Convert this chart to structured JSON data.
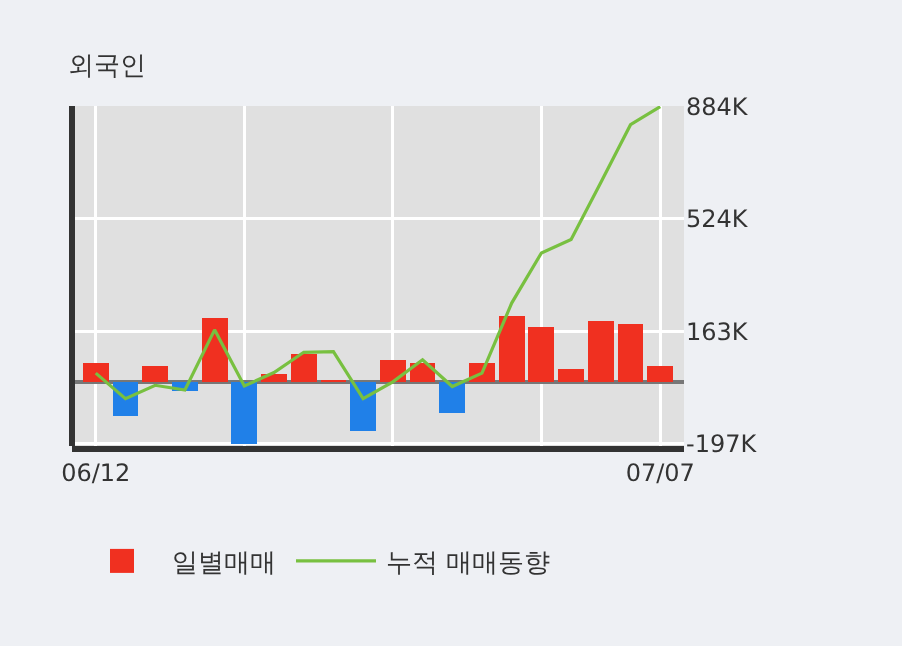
{
  "chart_data": {
    "type": "bar",
    "title": "외국인",
    "categories": [
      "06/12",
      null,
      null,
      null,
      null,
      null,
      null,
      null,
      null,
      null,
      null,
      null,
      null,
      null,
      null,
      null,
      null,
      null,
      null,
      "07/07"
    ],
    "series": [
      {
        "name": "일별매매",
        "colors": [
          "#f03020",
          "#2080e8",
          "#f03020",
          "#2080e8",
          "#f03020",
          "#2080e8",
          "#f03020",
          "#f03020",
          "#f03020",
          "#2080e8",
          "#f03020",
          "#f03020",
          "#2080e8",
          "#f03020",
          "#f03020",
          "#f03020",
          "#f03020",
          "#f03020",
          "#f03020",
          "#f03020"
        ],
        "values": [
          60000,
          -111000,
          50000,
          -28000,
          206000,
          -198000,
          26000,
          90000,
          6000,
          -159000,
          71000,
          60000,
          -101000,
          60000,
          211000,
          176000,
          41000,
          195000,
          187000,
          52000
        ]
      },
      {
        "name": "누적 매매동향",
        "type": "line",
        "color": "#78c040",
        "values": [
          28000,
          -54000,
          -11000,
          -26000,
          167000,
          -13000,
          30000,
          95000,
          97000,
          -54000,
          0,
          71000,
          -15000,
          28000,
          253000,
          414000,
          457000,
          640000,
          826000,
          884000
        ]
      }
    ],
    "ylim": [
      -206000,
      886000
    ],
    "yticks": [
      {
        "value": -197000,
        "label": "-197K"
      },
      {
        "value": 163000,
        "label": "163K"
      },
      {
        "value": 524000,
        "label": "524K"
      },
      {
        "value": 884000,
        "label": "884K"
      }
    ],
    "grid": true,
    "legend": "bottom",
    "marker": "none",
    "line_style": "solid"
  }
}
